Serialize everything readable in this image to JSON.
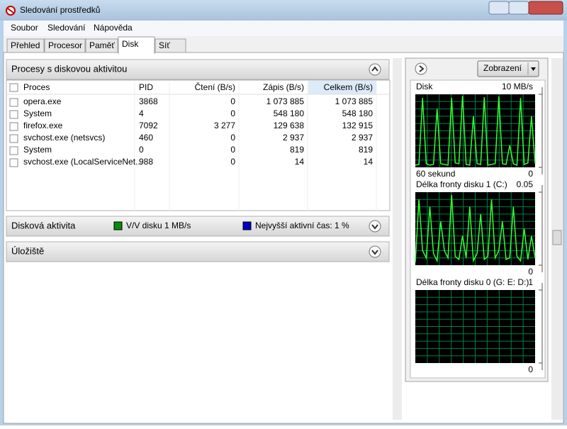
{
  "window": {
    "title": "Sledování prostředků"
  },
  "menu": [
    "Soubor",
    "Sledování",
    "Nápověda"
  ],
  "tabs": [
    "Přehled",
    "Procesor",
    "Paměť",
    "Disk",
    "Síť"
  ],
  "processes": {
    "title": "Procesy s diskovou aktivitou",
    "columns": [
      "Proces",
      "PID",
      "Čtení (B/s)",
      "Zápis (B/s)",
      "Celkem (B/s)"
    ],
    "rows": [
      [
        "opera.exe",
        "3868",
        "0",
        "1 073 885",
        "1 073 885"
      ],
      [
        "System",
        "4",
        "0",
        "548 180",
        "548 180"
      ],
      [
        "firefox.exe",
        "7092",
        "3 277",
        "129 638",
        "132 915"
      ],
      [
        "svchost.exe (netsvcs)",
        "460",
        "0",
        "2 937",
        "2 937"
      ],
      [
        "System",
        "0",
        "0",
        "819",
        "819"
      ],
      [
        "svchost.exe (LocalServiceNet...",
        "988",
        "0",
        "14",
        "14"
      ]
    ]
  },
  "disk_activity": {
    "title": "Disková aktivita",
    "legend": [
      "V/V disku 1 MB/s",
      "Nejvyšší aktivní čas: 1 %"
    ]
  },
  "storage": {
    "title": "Úložiště"
  },
  "side_panel": {
    "button": "Zobrazení",
    "graphs": [
      {
        "type": "line",
        "title": "Disk",
        "xlabel": "60 sekund",
        "ylim": [
          0,
          10
        ],
        "yticks": [
          0,
          {
            "value": 10,
            "label": "10 MB/s"
          }
        ],
        "color": "#33ff33",
        "values": [
          0.3,
          0.4,
          9.5,
          0.5,
          0.3,
          0.4,
          8,
          0.5,
          0.4,
          0.3,
          9.5,
          0.6,
          0.5,
          9.8,
          0.4,
          0.3,
          7,
          0.5,
          0.4,
          9.6,
          0.3,
          0.4,
          0.5,
          9.7,
          0.5,
          0.4,
          3,
          0.5,
          0.3,
          9.5,
          0.4,
          0.6,
          7,
          0.5
        ]
      },
      {
        "type": "line",
        "title": "Délka fronty disku 1 (C:)",
        "ylim": [
          0,
          0.05
        ],
        "yticks": [
          0,
          0.05
        ],
        "color": "#33ff33",
        "values": [
          0.002,
          0.045,
          0.01,
          0.005,
          0.04,
          0.008,
          0.003,
          0.03,
          0.01,
          0.005,
          0.048,
          0.006,
          0.004,
          0.02,
          0.005,
          0.04,
          0.003,
          0.008,
          0.035,
          0.004,
          0.006,
          0.045,
          0.005,
          0.01,
          0.03,
          0.004,
          0.005,
          0.04,
          0.006,
          0.003,
          0.025,
          0.004,
          0.02,
          0.005
        ]
      },
      {
        "type": "line",
        "title": "Délka fronty disku 0 (G: E: D:)",
        "ylim": [
          0,
          1
        ],
        "yticks": [
          0,
          1
        ],
        "color": "#33ff33",
        "values": []
      }
    ]
  }
}
